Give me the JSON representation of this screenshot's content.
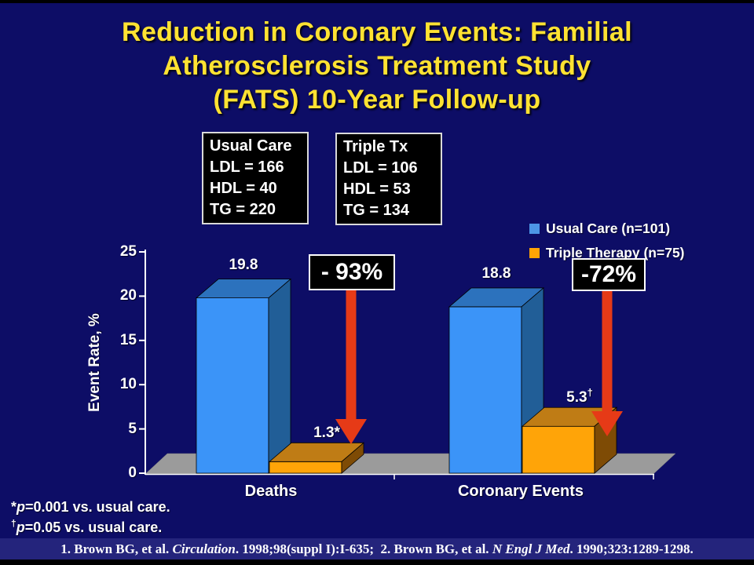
{
  "slide": {
    "title_lines": [
      "Reduction in Coronary Events: Familial",
      "Atherosclerosis Treatment Study",
      "(FATS) 10-Year Follow-up"
    ],
    "background_color": "#0D0D66",
    "title_color": "#FFE232"
  },
  "info_boxes": [
    {
      "lines": [
        "Usual Care",
        "LDL = 166",
        "HDL = 40",
        "TG = 220"
      ]
    },
    {
      "lines": [
        "Triple Tx",
        "LDL = 106",
        "HDL = 53",
        "TG = 134"
      ]
    }
  ],
  "legend": [
    {
      "label": "Usual Care (n=101)",
      "color": "#4D96E6"
    },
    {
      "label": "Triple Therapy (n=75)",
      "color": "#FFA405"
    }
  ],
  "chart_data": {
    "type": "bar",
    "style": "3d",
    "categories": [
      "Deaths",
      "Coronary Events"
    ],
    "series": [
      {
        "name": "Usual Care (n=101)",
        "values": [
          19.8,
          18.8
        ],
        "value_labels": [
          {
            "main": "19.8",
            "sup": ""
          },
          {
            "main": "18.8",
            "sup": ""
          }
        ],
        "color": "#3B94F8",
        "color_top": "#2C72BD",
        "color_side": "#215E97"
      },
      {
        "name": "Triple Therapy (n=75)",
        "values": [
          1.3,
          5.3
        ],
        "value_labels": [
          {
            "main": "1.3*",
            "sup": ""
          },
          {
            "main": "5.3",
            "sup": "†"
          }
        ],
        "color": "#FFA408",
        "color_top": "#BF7C15",
        "color_side": "#7E4B05"
      }
    ],
    "ylabel": "Event Rate, %",
    "ylim": [
      0,
      25
    ],
    "yticks": [
      0,
      5,
      10,
      15,
      20,
      25
    ],
    "grid": false,
    "legend_position": "top-right",
    "annotations": [
      {
        "text": "- 93%",
        "applies_to": "Deaths"
      },
      {
        "text": "-72%",
        "applies_to": "Coronary Events"
      }
    ],
    "floor_color": "#9B9B9B",
    "arrow_color": "#E63A17"
  },
  "footnotes": [
    {
      "marker": "*",
      "p": "p",
      "rest": "=0.001 vs. usual care."
    },
    {
      "marker": "†",
      "p": "p",
      "rest": "=0.05 vs. usual care."
    }
  ],
  "reference": {
    "segments": [
      {
        "text": "1. Brown BG, et al. "
      },
      {
        "text": "Circulation",
        "italic": true
      },
      {
        "text": ". 1998;98(suppl I):I-635;  2. Brown BG, et al. "
      },
      {
        "text": "N Engl J Med",
        "italic": true
      },
      {
        "text": ". 1990;323:1289-1298."
      }
    ]
  }
}
